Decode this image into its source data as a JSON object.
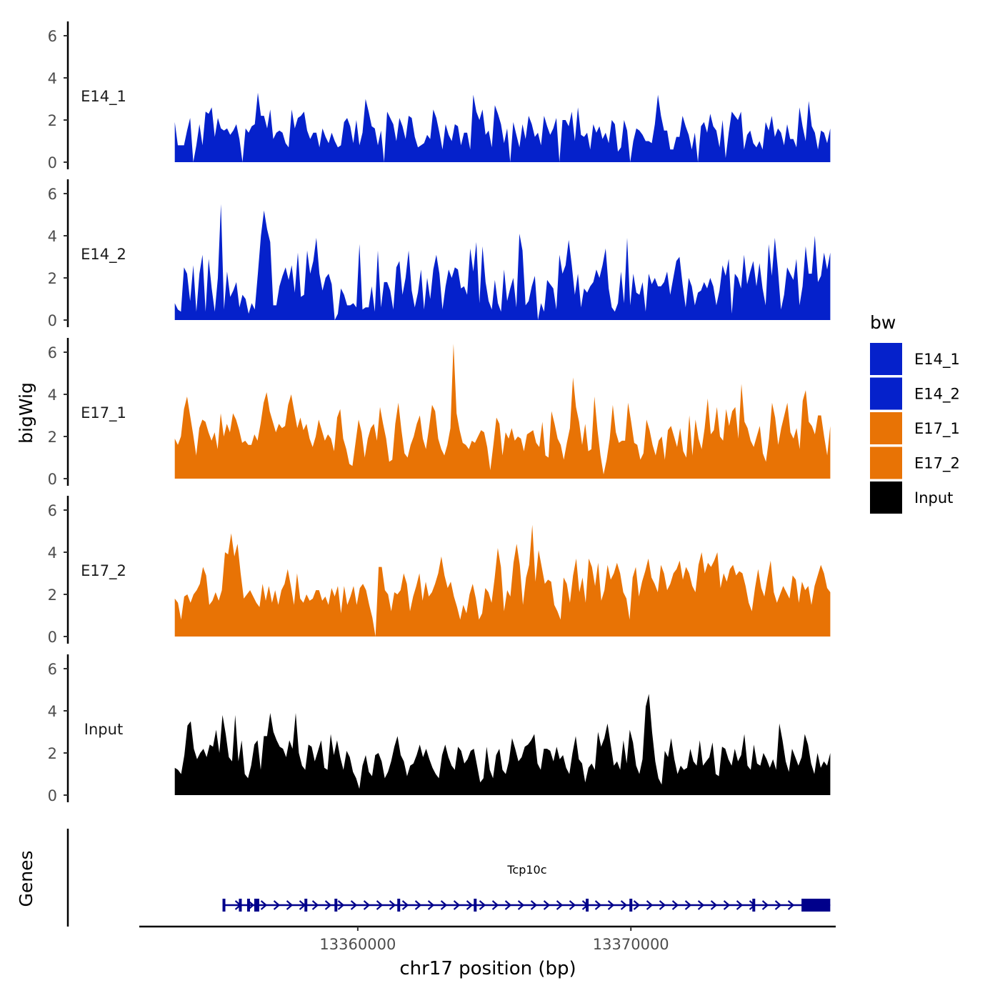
{
  "chart_data": {
    "type": "area",
    "title": "",
    "ylabel": "bigWig",
    "xlabel": "chr17 position (bp)",
    "genes_label": "Genes",
    "xlim": [
      13352000,
      13377500
    ],
    "ylim": [
      0,
      6.6
    ],
    "y_ticks": [
      0,
      2,
      4,
      6
    ],
    "x_ticks": [
      13360000,
      13370000
    ],
    "x_tick_labels": [
      "13360000",
      "13370000"
    ],
    "data_range": [
      13353300,
      13377300
    ],
    "legend_title": "bw",
    "series": [
      {
        "name": "E14_1",
        "color": "#0521CB",
        "values": [
          1.9,
          0.8,
          0.8,
          0.8,
          1.5,
          2.1,
          0.0,
          0.8,
          1.8,
          0.8,
          2.4,
          2.3,
          2.6,
          1.2,
          2.1,
          1.6,
          1.5,
          1.6,
          1.3,
          1.5,
          1.8,
          1.1,
          0.0,
          1.6,
          1.4,
          1.7,
          1.8,
          3.3,
          2.2,
          2.2,
          1.6,
          2.5,
          1.1,
          1.4,
          1.5,
          1.4,
          0.9,
          0.7,
          2.5,
          1.6,
          2.1,
          2.2,
          2.4,
          1.5,
          1.1,
          1.4,
          1.4,
          0.7,
          1.6,
          1.2,
          0.9,
          1.4,
          1.0,
          0.7,
          0.8,
          1.9,
          2.1,
          1.7,
          0.9,
          2.0,
          0.8,
          1.4,
          3.0,
          2.4,
          1.7,
          1.6,
          0.8,
          1.5,
          0.0,
          2.4,
          2.1,
          1.8,
          1.0,
          2.1,
          1.7,
          1.1,
          2.2,
          2.1,
          1.2,
          0.7,
          0.8,
          0.9,
          1.3,
          1.1,
          2.5,
          2.1,
          1.4,
          0.6,
          1.8,
          1.3,
          1.0,
          1.8,
          1.7,
          0.8,
          1.4,
          1.4,
          0.6,
          3.2,
          2.4,
          2.0,
          2.5,
          1.3,
          1.5,
          0.7,
          2.7,
          2.3,
          1.8,
          0.9,
          1.6,
          0.0,
          1.9,
          1.3,
          0.7,
          1.8,
          1.1,
          2.2,
          1.8,
          1.2,
          1.4,
          0.8,
          2.2,
          1.7,
          1.3,
          1.6,
          2.1,
          0.0,
          2.0,
          2.0,
          1.7,
          2.4,
          1.0,
          2.6,
          1.3,
          1.2,
          1.4,
          0.6,
          1.8,
          1.4,
          1.7,
          1.1,
          1.4,
          0.9,
          2.0,
          1.8,
          0.5,
          0.7,
          2.0,
          1.5,
          0.0,
          1.0,
          1.6,
          1.5,
          1.3,
          1.0,
          1.0,
          0.9,
          1.8,
          3.2,
          2.2,
          1.5,
          1.5,
          0.6,
          0.6,
          1.2,
          1.2,
          2.2,
          1.7,
          1.3,
          0.6,
          1.4,
          0.0,
          1.7,
          1.9,
          1.4,
          2.3,
          1.7,
          1.5,
          0.7,
          2.0,
          0.2,
          1.4,
          2.4,
          2.2,
          2.0,
          2.4,
          0.6,
          1.3,
          1.5,
          0.9,
          0.7,
          1.0,
          0.6,
          1.9,
          1.5,
          2.2,
          1.2,
          1.6,
          1.4,
          0.8,
          1.8,
          1.1,
          1.1,
          0.7,
          2.6,
          1.7,
          1.0,
          2.9,
          1.7,
          1.4,
          0.6,
          1.5,
          1.4,
          0.9,
          1.6
        ]
      },
      {
        "name": "E14_2",
        "color": "#0521CB",
        "values": [
          0.8,
          0.5,
          0.4,
          2.5,
          2.2,
          0.9,
          2.6,
          0.4,
          2.2,
          3.1,
          0.4,
          2.9,
          1.5,
          0.4,
          2.0,
          5.5,
          0.5,
          2.3,
          1.1,
          1.4,
          1.8,
          0.6,
          1.2,
          1.0,
          0.3,
          0.8,
          0.5,
          2.2,
          4.0,
          5.2,
          4.3,
          3.7,
          0.7,
          0.7,
          1.6,
          2.1,
          2.5,
          1.9,
          2.6,
          1.3,
          3.2,
          1.1,
          1.2,
          3.3,
          2.2,
          2.8,
          3.9,
          2.2,
          1.4,
          2.0,
          2.2,
          1.7,
          0.0,
          0.3,
          1.5,
          1.2,
          0.7,
          0.7,
          0.8,
          0.6,
          3.6,
          0.5,
          0.6,
          0.6,
          1.6,
          0.4,
          3.3,
          0.6,
          1.8,
          1.8,
          1.4,
          0.5,
          2.5,
          2.8,
          1.2,
          2.0,
          3.3,
          1.4,
          0.6,
          1.3,
          2.4,
          0.5,
          2.0,
          1.0,
          2.4,
          3.1,
          2.2,
          0.5,
          1.6,
          2.4,
          2.0,
          2.5,
          2.4,
          1.5,
          1.6,
          1.2,
          3.4,
          2.3,
          3.7,
          0.8,
          3.5,
          1.8,
          0.9,
          0.5,
          1.9,
          0.8,
          0.4,
          2.4,
          0.9,
          1.5,
          2.0,
          0.6,
          4.1,
          3.3,
          0.7,
          0.9,
          1.6,
          2.1,
          0.0,
          0.8,
          0.4,
          1.9,
          1.7,
          1.5,
          0.5,
          3.1,
          2.2,
          2.6,
          3.8,
          2.6,
          1.2,
          2.2,
          0.6,
          1.5,
          1.3,
          1.6,
          1.8,
          2.4,
          2.0,
          2.6,
          3.4,
          1.5,
          0.6,
          0.4,
          0.8,
          2.3,
          0.8,
          3.9,
          0.7,
          2.2,
          1.3,
          1.2,
          1.8,
          0.4,
          2.2,
          1.7,
          2.0,
          1.6,
          1.6,
          1.8,
          2.3,
          1.2,
          2.0,
          2.8,
          3.0,
          1.7,
          0.6,
          2.0,
          1.6,
          0.7,
          1.3,
          1.4,
          1.8,
          1.5,
          2.0,
          1.6,
          0.7,
          1.4,
          2.6,
          2.1,
          2.9,
          0.3,
          2.2,
          2.0,
          1.5,
          3.1,
          1.7,
          2.3,
          2.8,
          1.6,
          2.7,
          1.5,
          0.7,
          3.6,
          2.1,
          3.9,
          2.4,
          0.5,
          1.2,
          2.5,
          2.2,
          1.9,
          2.9,
          0.7,
          1.6,
          3.5,
          2.2,
          2.2,
          4.0,
          1.8,
          2.1,
          3.2,
          2.4,
          3.2
        ]
      },
      {
        "name": "E17_1",
        "color": "#E87305",
        "values": [
          1.9,
          1.6,
          2.0,
          3.3,
          3.9,
          3.0,
          2.1,
          1.1,
          2.4,
          2.8,
          2.7,
          2.2,
          1.8,
          2.2,
          1.4,
          3.1,
          2.0,
          2.6,
          2.2,
          3.1,
          2.8,
          2.3,
          1.7,
          1.8,
          1.6,
          1.6,
          2.1,
          1.8,
          2.6,
          3.6,
          4.1,
          3.2,
          2.7,
          2.2,
          2.6,
          2.4,
          2.5,
          3.5,
          4.0,
          3.2,
          2.4,
          2.9,
          2.3,
          2.6,
          1.9,
          1.5,
          2.0,
          2.8,
          2.3,
          1.8,
          2.1,
          1.9,
          1.3,
          2.9,
          3.3,
          1.9,
          1.4,
          0.7,
          0.6,
          1.7,
          2.8,
          2.2,
          1.0,
          1.9,
          2.4,
          2.6,
          1.8,
          3.4,
          2.6,
          1.9,
          0.8,
          0.9,
          2.6,
          3.6,
          2.3,
          1.2,
          1.0,
          1.6,
          2.0,
          2.6,
          3.0,
          1.9,
          1.4,
          2.4,
          3.5,
          3.2,
          1.9,
          1.4,
          1.1,
          1.6,
          2.4,
          6.4,
          3.1,
          2.3,
          1.7,
          1.6,
          1.4,
          1.8,
          1.7,
          2.0,
          2.3,
          2.2,
          1.5,
          0.4,
          1.6,
          2.9,
          2.6,
          1.1,
          2.2,
          1.9,
          2.4,
          1.8,
          2.0,
          1.9,
          1.3,
          2.1,
          2.2,
          2.3,
          1.7,
          1.5,
          2.7,
          1.1,
          1.0,
          3.2,
          2.6,
          1.9,
          1.6,
          0.9,
          1.7,
          2.4,
          4.8,
          3.4,
          2.7,
          1.6,
          2.6,
          1.3,
          1.4,
          3.9,
          2.3,
          1.1,
          0.2,
          0.9,
          1.9,
          3.5,
          2.2,
          1.7,
          1.8,
          1.8,
          3.6,
          2.7,
          1.7,
          1.6,
          0.9,
          1.2,
          2.8,
          2.3,
          1.6,
          1.1,
          1.8,
          2.0,
          0.9,
          2.3,
          2.5,
          2.0,
          1.5,
          2.4,
          1.3,
          1.0,
          3.0,
          1.1,
          2.8,
          1.9,
          1.4,
          2.4,
          3.8,
          2.1,
          2.3,
          3.4,
          2.0,
          1.8,
          3.3,
          2.5,
          3.2,
          3.4,
          1.9,
          4.5,
          2.7,
          2.4,
          1.8,
          1.5,
          2.0,
          2.5,
          1.2,
          0.8,
          1.9,
          3.6,
          2.9,
          1.6,
          2.4,
          3.0,
          3.6,
          2.2,
          1.9,
          2.4,
          1.4,
          3.7,
          4.2,
          2.7,
          2.5,
          2.1,
          3.0,
          3.0,
          2.0,
          1.1,
          2.5
        ]
      },
      {
        "name": "E17_2",
        "color": "#E87305",
        "values": [
          1.8,
          1.6,
          0.8,
          1.9,
          2.0,
          1.6,
          2.0,
          2.2,
          2.5,
          3.3,
          2.9,
          1.5,
          1.7,
          2.1,
          1.7,
          2.2,
          4.0,
          3.9,
          4.9,
          3.8,
          4.4,
          3.0,
          1.8,
          2.0,
          2.2,
          1.9,
          1.6,
          1.4,
          2.5,
          1.7,
          2.4,
          1.6,
          2.2,
          1.5,
          2.2,
          2.5,
          3.2,
          2.4,
          1.5,
          3.0,
          1.8,
          1.6,
          2.0,
          1.7,
          1.8,
          2.2,
          2.2,
          1.7,
          1.9,
          1.5,
          2.3,
          1.9,
          2.4,
          1.1,
          2.4,
          1.5,
          1.9,
          2.4,
          1.5,
          2.3,
          2.5,
          2.2,
          1.5,
          0.9,
          0.0,
          3.3,
          3.3,
          2.2,
          2.0,
          1.2,
          2.1,
          2.0,
          2.2,
          3.0,
          2.5,
          1.2,
          1.9,
          2.4,
          3.0,
          1.7,
          2.6,
          1.9,
          2.1,
          2.5,
          3.0,
          3.8,
          2.9,
          2.3,
          2.6,
          1.9,
          1.4,
          0.8,
          1.5,
          1.1,
          2.0,
          2.5,
          1.8,
          0.8,
          1.1,
          2.3,
          2.1,
          1.6,
          2.8,
          4.2,
          3.3,
          1.2,
          2.2,
          1.9,
          3.5,
          4.4,
          3.4,
          1.5,
          2.8,
          3.4,
          5.3,
          2.6,
          4.1,
          3.3,
          2.5,
          2.7,
          2.6,
          1.5,
          1.2,
          0.8,
          2.8,
          2.5,
          1.6,
          2.9,
          3.7,
          2.1,
          2.8,
          1.6,
          3.7,
          3.3,
          2.4,
          3.5,
          1.7,
          2.2,
          3.4,
          2.7,
          3.0,
          3.5,
          3.0,
          2.1,
          1.8,
          0.8,
          2.8,
          3.3,
          1.9,
          2.6,
          3.1,
          3.7,
          2.8,
          2.5,
          2.1,
          3.4,
          3.0,
          2.2,
          2.5,
          3.0,
          3.2,
          3.6,
          2.7,
          3.3,
          3.0,
          2.4,
          2.1,
          3.4,
          4.0,
          3.0,
          3.5,
          3.3,
          3.6,
          4.0,
          2.3,
          3.0,
          2.6,
          3.2,
          3.4,
          2.9,
          3.1,
          3.0,
          2.4,
          1.6,
          1.2,
          2.3,
          3.2,
          2.3,
          1.9,
          2.8,
          3.6,
          2.1,
          1.6,
          2.0,
          2.4,
          2.1,
          1.8,
          2.9,
          2.7,
          1.6,
          2.6,
          2.2,
          2.4,
          1.5,
          2.4,
          2.9,
          3.4,
          3.0,
          2.3,
          2.1
        ]
      },
      {
        "name": "Input",
        "color": "#000000",
        "values": [
          1.3,
          1.2,
          1.0,
          1.9,
          3.3,
          3.5,
          2.2,
          1.7,
          2.0,
          2.2,
          1.8,
          2.4,
          2.3,
          3.1,
          2.0,
          3.8,
          2.9,
          1.8,
          1.6,
          3.8,
          1.6,
          2.6,
          1.0,
          0.8,
          1.4,
          2.4,
          2.6,
          1.2,
          2.8,
          2.8,
          3.9,
          3.0,
          2.6,
          2.3,
          2.2,
          1.8,
          2.6,
          2.2,
          3.9,
          2.0,
          1.4,
          1.2,
          2.4,
          2.3,
          1.6,
          2.1,
          2.6,
          1.3,
          1.2,
          2.9,
          1.9,
          2.6,
          1.8,
          1.2,
          2.1,
          1.8,
          1.1,
          0.8,
          0.3,
          1.4,
          1.9,
          1.1,
          0.9,
          1.9,
          2.0,
          1.6,
          0.8,
          1.1,
          1.6,
          2.3,
          2.8,
          1.9,
          1.6,
          0.9,
          1.4,
          1.5,
          1.9,
          2.4,
          1.8,
          2.2,
          1.7,
          1.3,
          1.0,
          0.8,
          1.9,
          2.4,
          1.8,
          1.4,
          1.2,
          2.3,
          2.1,
          1.5,
          1.7,
          2.1,
          2.2,
          1.4,
          0.6,
          0.8,
          2.3,
          1.2,
          0.8,
          1.9,
          2.2,
          1.2,
          1.0,
          1.6,
          2.7,
          2.2,
          1.6,
          1.8,
          2.3,
          2.4,
          2.6,
          2.9,
          1.5,
          1.2,
          2.2,
          2.2,
          2.1,
          1.6,
          2.3,
          1.7,
          1.9,
          1.3,
          1.0,
          2.0,
          2.8,
          1.7,
          1.5,
          0.6,
          1.3,
          1.5,
          1.2,
          3.0,
          2.3,
          2.7,
          3.4,
          2.4,
          1.4,
          1.6,
          1.2,
          2.6,
          1.5,
          3.1,
          2.5,
          1.4,
          1.0,
          1.7,
          4.2,
          4.8,
          3.0,
          1.6,
          0.8,
          0.5,
          2.1,
          1.8,
          2.7,
          1.7,
          1.0,
          1.4,
          1.2,
          1.3,
          2.2,
          1.6,
          1.4,
          2.6,
          1.4,
          1.6,
          1.8,
          2.5,
          1.0,
          0.9,
          2.3,
          2.2,
          1.7,
          1.4,
          2.2,
          1.6,
          1.9,
          2.9,
          1.4,
          1.2,
          2.4,
          1.5,
          1.4,
          2.0,
          1.7,
          1.3,
          1.7,
          1.2,
          3.4,
          2.6,
          1.6,
          1.1,
          2.2,
          1.8,
          1.4,
          1.8,
          2.9,
          2.4,
          1.5,
          1.0,
          2.0,
          1.3,
          1.6,
          1.4,
          2.0
        ]
      }
    ],
    "gene": {
      "name": "Tcp10c",
      "start": 13355100,
      "end": 13377300,
      "cds_start": 13376300,
      "strand": "+",
      "exons": [
        13355100,
        13355700,
        13356000,
        13356300,
        13358100,
        13359200,
        13361500,
        13364300,
        13368400,
        13370000,
        13374500,
        13376300
      ]
    },
    "colors": {
      "E14": "#0521CB",
      "E17": "#E87305",
      "Input": "#000000",
      "gene": "#00008B"
    }
  }
}
